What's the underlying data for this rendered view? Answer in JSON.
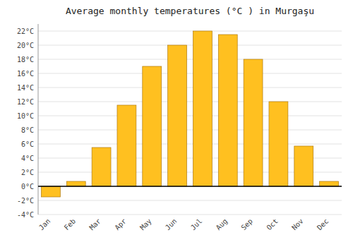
{
  "chart_data": {
    "type": "bar",
    "title": "Average monthly temperatures (°C ) in Murgaşu",
    "categories": [
      "Jan",
      "Feb",
      "Mar",
      "Apr",
      "May",
      "Jun",
      "Jul",
      "Aug",
      "Sep",
      "Oct",
      "Nov",
      "Dec"
    ],
    "values": [
      -1.5,
      0.7,
      5.5,
      11.5,
      17.0,
      20.0,
      22.0,
      21.5,
      18.0,
      12.0,
      5.7,
      0.7
    ],
    "color": "#FFC020",
    "ylim": [
      -4,
      23
    ],
    "yticks": [
      {
        "value": -4,
        "label": "-4°C"
      },
      {
        "value": -2,
        "label": "-2°C"
      },
      {
        "value": 0,
        "label": "0°C"
      },
      {
        "value": 2,
        "label": "2°C"
      },
      {
        "value": 4,
        "label": "4°C"
      },
      {
        "value": 6,
        "label": "6°C"
      },
      {
        "value": 8,
        "label": "8°C"
      },
      {
        "value": 10,
        "label": "10°C"
      },
      {
        "value": 12,
        "label": "12°C"
      },
      {
        "value": 14,
        "label": "14°C"
      },
      {
        "value": 16,
        "label": "16°C"
      },
      {
        "value": 18,
        "label": "18°C"
      },
      {
        "value": 20,
        "label": "20°C"
      },
      {
        "value": 22,
        "label": "22°C"
      }
    ],
    "grid": true
  }
}
